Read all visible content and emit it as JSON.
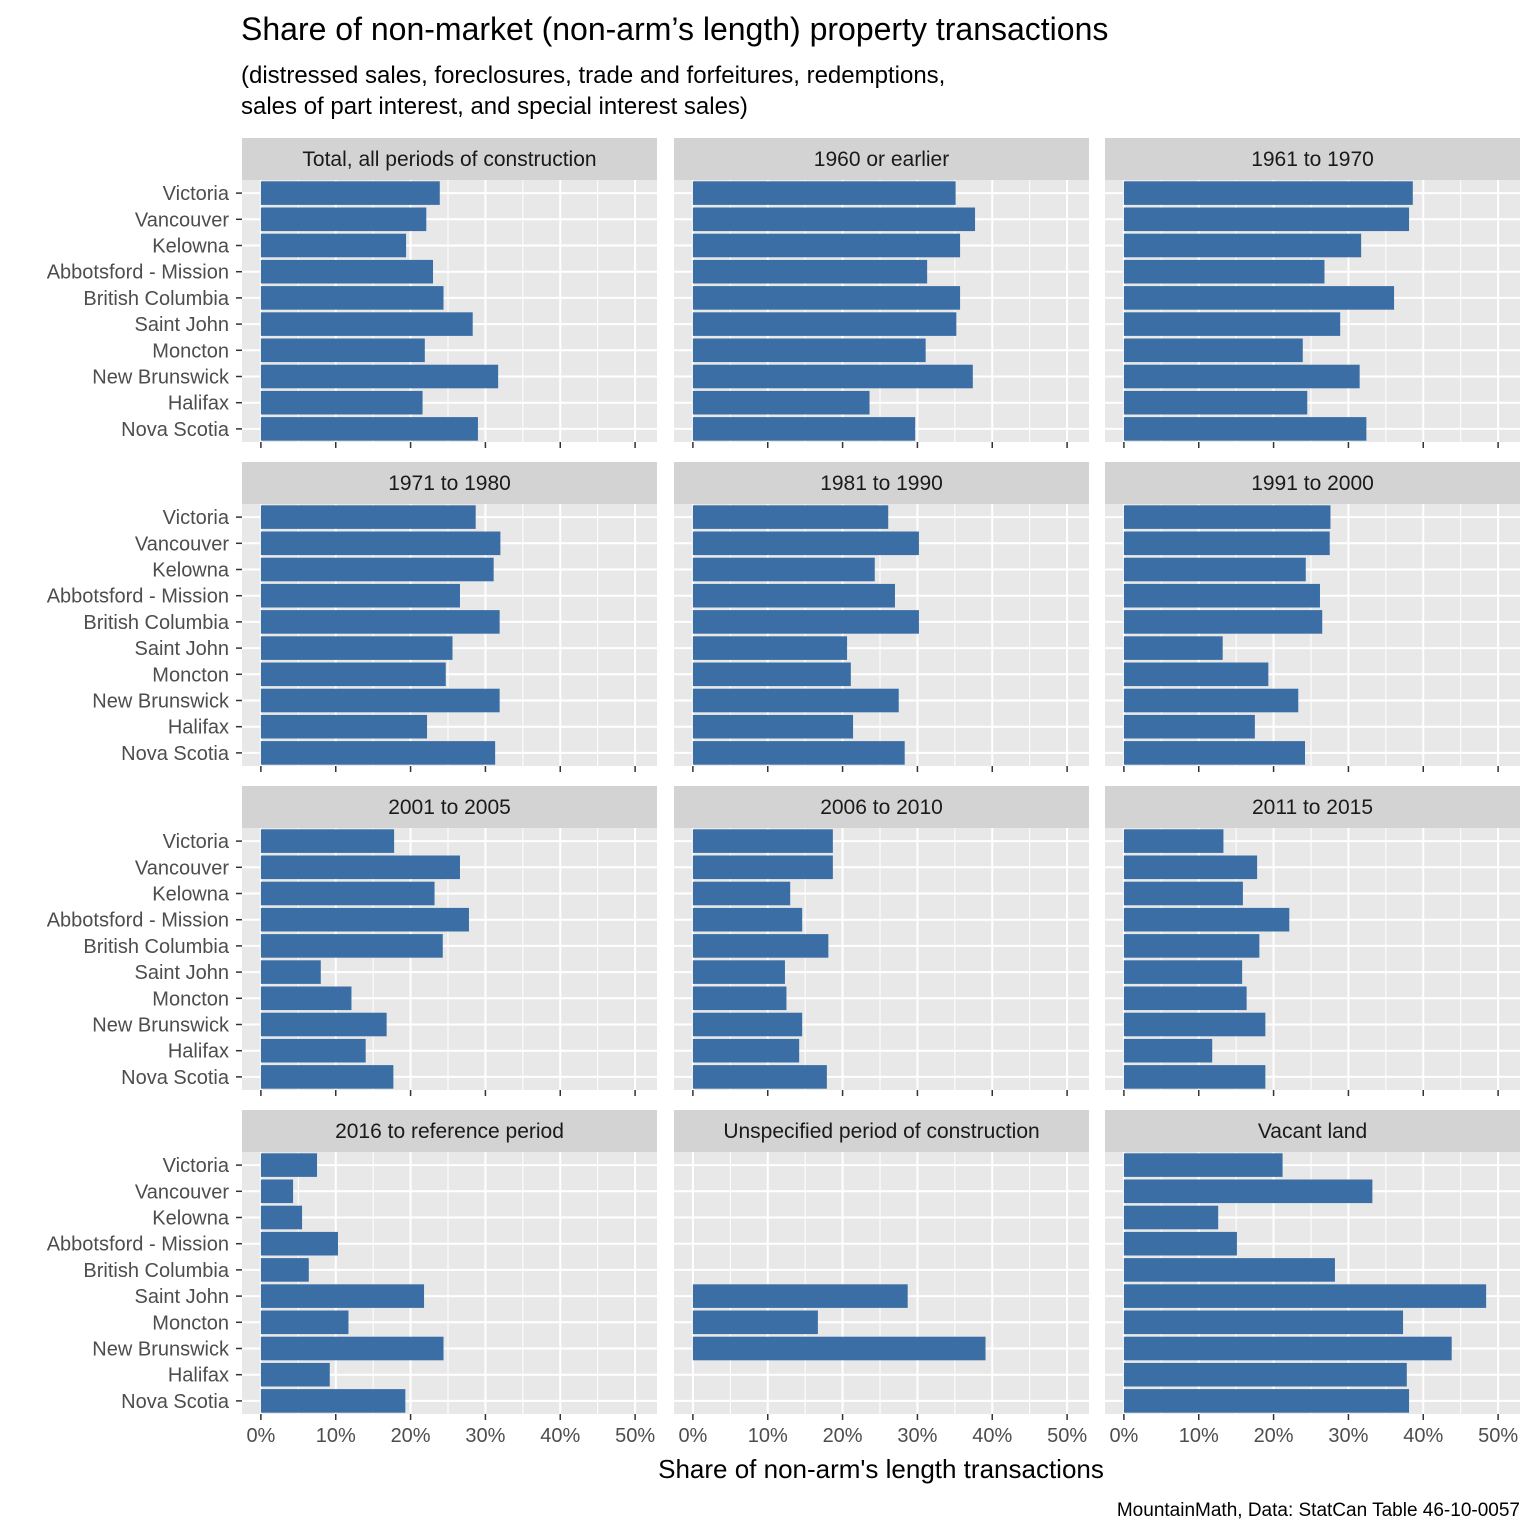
{
  "chart_data": {
    "type": "bar",
    "orientation": "horizontal",
    "title": "Share of non-market (non-arm’s length) property transactions",
    "subtitle_lines": [
      "(distressed sales, foreclosures, trade and forfeitures, redemptions,",
      "sales of part interest, and special interest sales)"
    ],
    "xlabel": "Share of non-arm's length transactions",
    "caption": "MountainMath, Data: StatCan Table 46-10-0057",
    "xlim": [
      0,
      0.5
    ],
    "x_ticks": [
      0,
      0.1,
      0.2,
      0.3,
      0.4,
      0.5
    ],
    "x_tick_labels": [
      "0%",
      "10%",
      "20%",
      "30%",
      "40%",
      "50%"
    ],
    "categories": [
      "Victoria",
      "Vancouver",
      "Kelowna",
      "Abbotsford - Mission",
      "British Columbia",
      "Saint John",
      "Moncton",
      "New Brunswick",
      "Halifax",
      "Nova Scotia"
    ],
    "bar_color": "#3a6ea5",
    "panel_background": "#e8e8e8",
    "strip_background": "#d3d3d3",
    "grid": true,
    "facets": [
      {
        "name": "Total, all periods of construction",
        "values": [
          0.239,
          0.221,
          0.194,
          0.23,
          0.244,
          0.283,
          0.219,
          0.317,
          0.216,
          0.29
        ]
      },
      {
        "name": "1960 or earlier",
        "values": [
          0.351,
          0.377,
          0.357,
          0.313,
          0.357,
          0.352,
          0.311,
          0.374,
          0.236,
          0.297
        ]
      },
      {
        "name": "1961 to 1970",
        "values": [
          0.386,
          0.381,
          0.317,
          0.268,
          0.361,
          0.289,
          0.239,
          0.315,
          0.245,
          0.324
        ]
      },
      {
        "name": "1971 to 1980",
        "values": [
          0.287,
          0.32,
          0.311,
          0.266,
          0.319,
          0.256,
          0.247,
          0.319,
          0.222,
          0.313
        ]
      },
      {
        "name": "1981 to 1990",
        "values": [
          0.261,
          0.302,
          0.243,
          0.27,
          0.302,
          0.206,
          0.211,
          0.275,
          0.214,
          0.283
        ]
      },
      {
        "name": "1991 to 2000",
        "values": [
          0.276,
          0.275,
          0.243,
          0.262,
          0.265,
          0.132,
          0.193,
          0.233,
          0.175,
          0.242
        ]
      },
      {
        "name": "2001 to 2005",
        "values": [
          0.178,
          0.266,
          0.232,
          0.278,
          0.243,
          0.08,
          0.121,
          0.168,
          0.14,
          0.177
        ]
      },
      {
        "name": "2006 to 2010",
        "values": [
          0.187,
          0.187,
          0.13,
          0.146,
          0.181,
          0.123,
          0.125,
          0.146,
          0.142,
          0.179
        ]
      },
      {
        "name": "2011 to 2015",
        "values": [
          0.133,
          0.178,
          0.159,
          0.221,
          0.181,
          0.158,
          0.164,
          0.189,
          0.118,
          0.189
        ]
      },
      {
        "name": "2016 to reference period",
        "values": [
          0.075,
          0.043,
          0.055,
          0.103,
          0.064,
          0.218,
          0.117,
          0.244,
          0.092,
          0.193
        ]
      },
      {
        "name": "Unspecified period of construction",
        "values": [
          null,
          null,
          null,
          null,
          null,
          0.287,
          0.167,
          0.391,
          null,
          null
        ]
      },
      {
        "name": "Vacant land",
        "values": [
          0.212,
          0.332,
          0.126,
          0.151,
          0.282,
          0.484,
          0.373,
          0.438,
          0.378,
          0.381
        ]
      }
    ]
  }
}
